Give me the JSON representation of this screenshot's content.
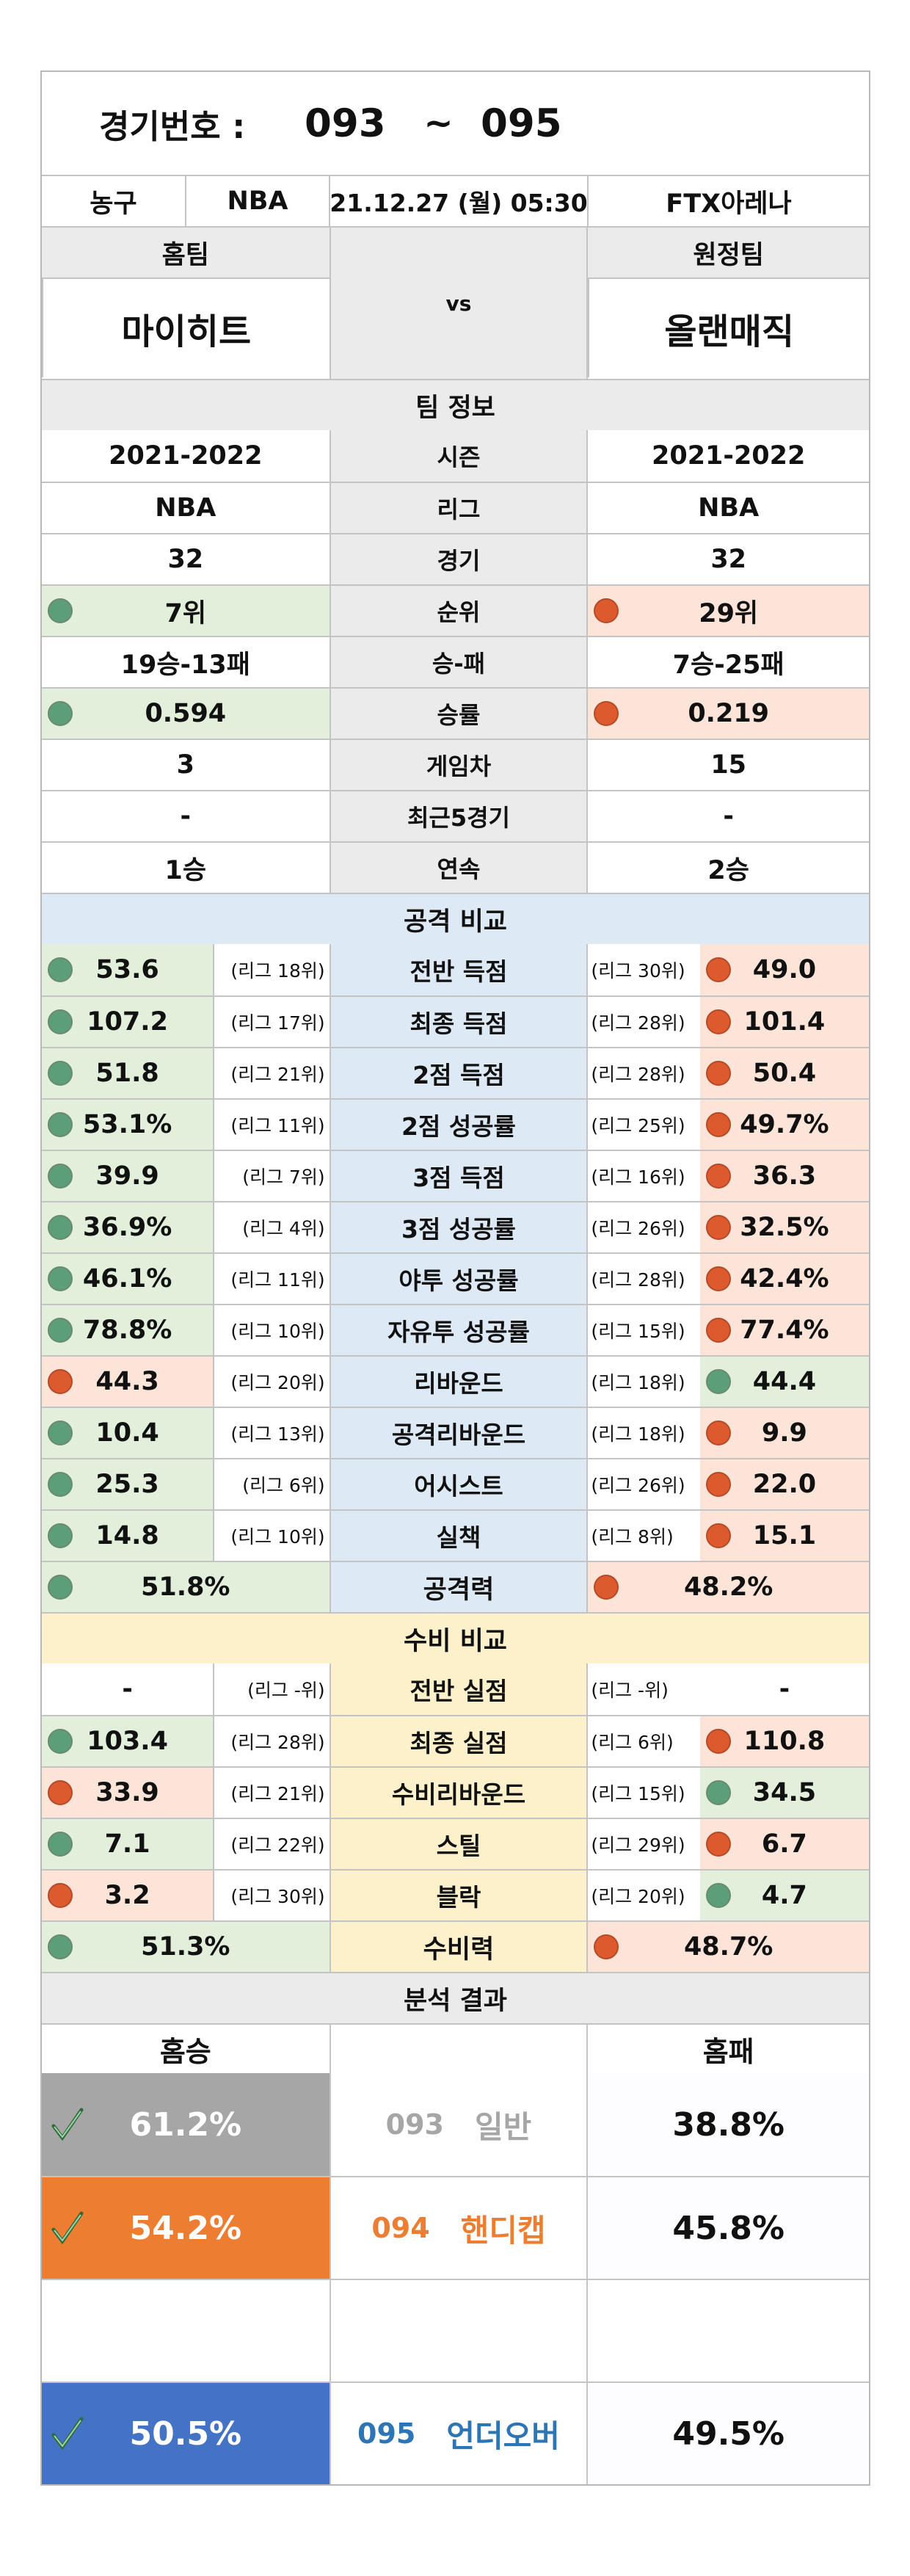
{
  "header": {
    "label": "경기번호 :",
    "from": "093",
    "tilde": "~",
    "to": "095"
  },
  "info": {
    "sport": "농구",
    "league": "NBA",
    "datetime": "21.12.27 (월) 05:30",
    "venue": "FTX아레나"
  },
  "teams": {
    "home_label": "홈팀",
    "away_label": "원정팀",
    "home": "마이히트",
    "vs": "vs",
    "away": "올랜매직"
  },
  "team_info": {
    "title": "팀 정보",
    "rows": [
      {
        "home": "2021-2022",
        "label": "시즌",
        "away": "2021-2022"
      },
      {
        "home": "NBA",
        "label": "리그",
        "away": "NBA"
      },
      {
        "home": "32",
        "label": "경기",
        "away": "32"
      },
      {
        "home": "7위",
        "label": "순위",
        "away": "29위",
        "hs": "g",
        "as": "r"
      },
      {
        "home": "19승-13패",
        "label": "승-패",
        "away": "7승-25패"
      },
      {
        "home": "0.594",
        "label": "승률",
        "away": "0.219",
        "hs": "g",
        "as": "r"
      },
      {
        "home": "3",
        "label": "게임차",
        "away": "15"
      },
      {
        "home": "-",
        "label": "최근5경기",
        "away": "-"
      },
      {
        "home": "1승",
        "label": "연속",
        "away": "2승"
      }
    ]
  },
  "attack": {
    "title": "공격 비교",
    "rows": [
      {
        "home": "53.6",
        "hr": "(리그 18위)",
        "label": "전반 득점",
        "ar": "(리그 30위)",
        "away": "49.0",
        "hs": "g",
        "as": "r"
      },
      {
        "home": "107.2",
        "hr": "(리그 17위)",
        "label": "최종 득점",
        "ar": "(리그 28위)",
        "away": "101.4",
        "hs": "g",
        "as": "r"
      },
      {
        "home": "51.8",
        "hr": "(리그 21위)",
        "label": "2점 득점",
        "ar": "(리그 28위)",
        "away": "50.4",
        "hs": "g",
        "as": "r"
      },
      {
        "home": "53.1%",
        "hr": "(리그 11위)",
        "label": "2점 성공률",
        "ar": "(리그 25위)",
        "away": "49.7%",
        "hs": "g",
        "as": "r"
      },
      {
        "home": "39.9",
        "hr": "(리그 7위)",
        "label": "3점 득점",
        "ar": "(리그 16위)",
        "away": "36.3",
        "hs": "g",
        "as": "r"
      },
      {
        "home": "36.9%",
        "hr": "(리그 4위)",
        "label": "3점 성공률",
        "ar": "(리그 26위)",
        "away": "32.5%",
        "hs": "g",
        "as": "r"
      },
      {
        "home": "46.1%",
        "hr": "(리그 11위)",
        "label": "야투 성공률",
        "ar": "(리그 28위)",
        "away": "42.4%",
        "hs": "g",
        "as": "r"
      },
      {
        "home": "78.8%",
        "hr": "(리그 10위)",
        "label": "자유투 성공률",
        "ar": "(리그 15위)",
        "away": "77.4%",
        "hs": "g",
        "as": "r"
      },
      {
        "home": "44.3",
        "hr": "(리그 20위)",
        "label": "리바운드",
        "ar": "(리그 18위)",
        "away": "44.4",
        "hs": "r",
        "as": "g"
      },
      {
        "home": "10.4",
        "hr": "(리그 13위)",
        "label": "공격리바운드",
        "ar": "(리그 18위)",
        "away": "9.9",
        "hs": "g",
        "as": "r"
      },
      {
        "home": "25.3",
        "hr": "(리그 6위)",
        "label": "어시스트",
        "ar": "(리그 26위)",
        "away": "22.0",
        "hs": "g",
        "as": "r"
      },
      {
        "home": "14.8",
        "hr": "(리그 10위)",
        "label": "실책",
        "ar": "(리그 8위)",
        "away": "15.1",
        "hs": "g",
        "as": "r"
      }
    ],
    "total": {
      "home": "51.8%",
      "label": "공격력",
      "away": "48.2%"
    }
  },
  "defense": {
    "title": "수비 비교",
    "rows": [
      {
        "home": "-",
        "hr": "(리그 -위)",
        "label": "전반 실점",
        "ar": "(리그 -위)",
        "away": "-",
        "hs": "",
        "as": ""
      },
      {
        "home": "103.4",
        "hr": "(리그 28위)",
        "label": "최종 실점",
        "ar": "(리그 6위)",
        "away": "110.8",
        "hs": "g",
        "as": "r"
      },
      {
        "home": "33.9",
        "hr": "(리그 21위)",
        "label": "수비리바운드",
        "ar": "(리그 15위)",
        "away": "34.5",
        "hs": "r",
        "as": "g"
      },
      {
        "home": "7.1",
        "hr": "(리그 22위)",
        "label": "스틸",
        "ar": "(리그 29위)",
        "away": "6.7",
        "hs": "g",
        "as": "r"
      },
      {
        "home": "3.2",
        "hr": "(리그 30위)",
        "label": "블락",
        "ar": "(리그 20위)",
        "away": "4.7",
        "hs": "r",
        "as": "g"
      }
    ],
    "total": {
      "home": "51.3%",
      "label": "수비력",
      "away": "48.7%"
    }
  },
  "analysis": {
    "title": "분석 결과",
    "home_label": "홈승",
    "away_label": "홈패",
    "rows": [
      {
        "home": "61.2%",
        "num": "093",
        "type": "일반",
        "away": "38.8%",
        "bg": "#a6a6a6",
        "fg": "#a6a6a6"
      },
      {
        "home": "54.2%",
        "num": "094",
        "type": "핸디캡",
        "away": "45.8%",
        "bg": "#ed7d31",
        "fg": "#ed7d31"
      },
      {
        "home": "50.5%",
        "num": "095",
        "type": "언더오버",
        "away": "49.5%",
        "bg": "#4472c4",
        "fg": "#2e75b6"
      }
    ]
  }
}
